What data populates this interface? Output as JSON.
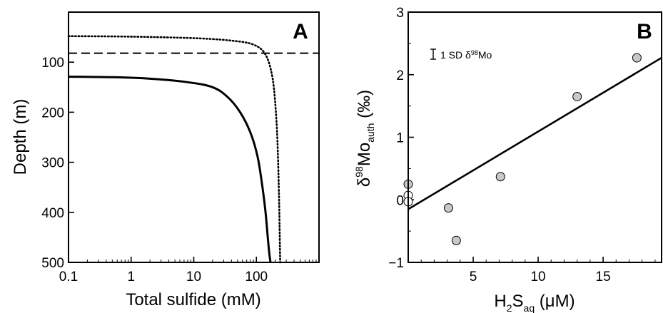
{
  "chart_data": [
    {
      "type": "line",
      "panel_label": "A",
      "xlabel": "Total sulfide (mM)",
      "ylabel": "Depth (m)",
      "x_scale": "log",
      "xlim": [
        0.1,
        1000
      ],
      "ylim": [
        0,
        500
      ],
      "y_inverted": true,
      "x_ticks": [
        {
          "value": 0.1,
          "label": "0.1"
        },
        {
          "value": 1,
          "label": "1"
        },
        {
          "value": 10,
          "label": "10"
        },
        {
          "value": 100,
          "label": "100"
        }
      ],
      "y_ticks": [
        {
          "value": 100,
          "label": "100"
        },
        {
          "value": 200,
          "label": "200"
        },
        {
          "value": 300,
          "label": "300"
        },
        {
          "value": 400,
          "label": "400"
        },
        {
          "value": 500,
          "label": "500"
        }
      ],
      "grid": false,
      "series": [
        {
          "style": "solid",
          "x": [
            0.1,
            0.5,
            2,
            8,
            20,
            35,
            55,
            80,
            105,
            125,
            140,
            152,
            160,
            168
          ],
          "y": [
            129,
            130,
            133,
            140,
            150,
            170,
            200,
            240,
            290,
            350,
            400,
            450,
            480,
            500
          ]
        },
        {
          "style": "dotted",
          "x": [
            0.1,
            1,
            10,
            40,
            90,
            140,
            180,
            205,
            220,
            230,
            236,
            240
          ],
          "y": [
            48,
            49,
            52,
            57,
            65,
            85,
            130,
            200,
            280,
            370,
            450,
            500
          ]
        },
        {
          "style": "dashed",
          "x": [
            0.1,
            1000
          ],
          "y": [
            82,
            82
          ]
        }
      ]
    },
    {
      "type": "scatter",
      "panel_label": "B",
      "xlabel": {
        "base": "H",
        "sub1": "2",
        "mid": "S",
        "sub2": "aq",
        "unit": " (μM)"
      },
      "ylabel": {
        "base": "δ",
        "sup": "98",
        "mid": "Mo",
        "sub": "auth",
        "unit": " (‰)"
      },
      "xlim": [
        0,
        19.5
      ],
      "ylim": [
        -1,
        3
      ],
      "x_ticks": [
        {
          "value": 5,
          "label": "5"
        },
        {
          "value": 10,
          "label": "10"
        },
        {
          "value": 15,
          "label": "15"
        }
      ],
      "y_ticks": [
        {
          "value": -1,
          "label": "−1"
        },
        {
          "value": 0,
          "label": "0"
        },
        {
          "value": 1,
          "label": "1"
        },
        {
          "value": 2,
          "label": "2"
        },
        {
          "value": 3,
          "label": "3"
        }
      ],
      "grid": false,
      "annotation": "1 SD δ98Mo",
      "points": [
        {
          "x": 0,
          "y": 0.25,
          "fill": "#c8c8c8"
        },
        {
          "x": 0,
          "y": 0.07,
          "fill": "#ffffff"
        },
        {
          "x": 0,
          "y": -0.03,
          "fill": "#ffffff"
        },
        {
          "x": 3.1,
          "y": -0.13,
          "fill": "#c8c8c8"
        },
        {
          "x": 3.7,
          "y": -0.65,
          "fill": "#c8c8c8"
        },
        {
          "x": 7.1,
          "y": 0.37,
          "fill": "#c8c8c8"
        },
        {
          "x": 13.0,
          "y": 1.65,
          "fill": "#c8c8c8"
        },
        {
          "x": 17.6,
          "y": 2.27,
          "fill": "#c8c8c8"
        }
      ],
      "fit_line": {
        "x": [
          0,
          19.5
        ],
        "y": [
          -0.15,
          2.27
        ]
      }
    }
  ]
}
